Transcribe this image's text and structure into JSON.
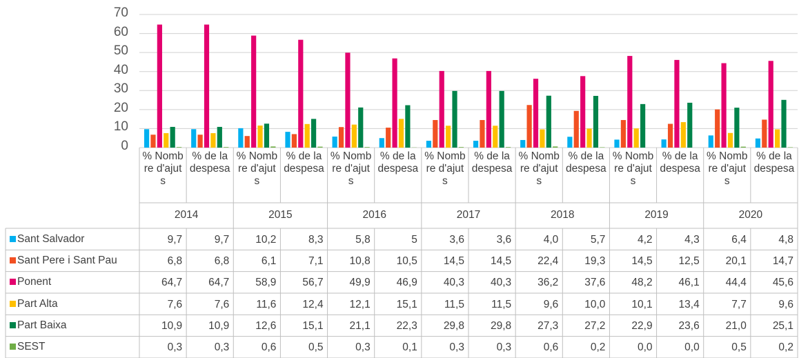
{
  "chart_data": {
    "type": "bar",
    "categories": [
      "% Nombre d'ajuts",
      "% de la despesa",
      "% Nombre d'ajuts",
      "% de la despesa",
      "% Nombre d'ajuts",
      "% de la despesa",
      "% Nombre d'ajuts",
      "% de la despesa",
      "% Nombre d'ajuts",
      "% de la despesa",
      "% Nombre d'ajuts",
      "% de la despesa",
      "% Nombre d'ajuts",
      "% de la despesa"
    ],
    "groups": [
      "2014",
      "2015",
      "2016",
      "2017",
      "2018",
      "2019",
      "2020"
    ],
    "series": [
      {
        "name": "Sant Salvador",
        "color": "#00b0f0",
        "values": [
          9.7,
          9.7,
          10.2,
          8.3,
          5.8,
          5,
          3.6,
          3.6,
          4.0,
          5.7,
          4.2,
          4.3,
          6.4,
          4.8
        ],
        "value_labels": [
          "9,7",
          "9,7",
          "10,2",
          "8,3",
          "5,8",
          "5",
          "3,6",
          "3,6",
          "4,0",
          "5,7",
          "4,2",
          "4,3",
          "6,4",
          "4,8"
        ]
      },
      {
        "name": "Sant Pere i Sant Pau",
        "color": "#f25022",
        "values": [
          6.8,
          6.8,
          6.1,
          7.1,
          10.8,
          10.5,
          14.5,
          14.5,
          22.4,
          19.3,
          14.5,
          12.5,
          20.1,
          14.7
        ],
        "value_labels": [
          "6,8",
          "6,8",
          "6,1",
          "7,1",
          "10,8",
          "10,5",
          "14,5",
          "14,5",
          "22,4",
          "19,3",
          "14,5",
          "12,5",
          "20,1",
          "14,7"
        ]
      },
      {
        "name": "Ponent",
        "color": "#e3006e",
        "values": [
          64.7,
          64.7,
          58.9,
          56.7,
          49.9,
          46.9,
          40.3,
          40.3,
          36.2,
          37.6,
          48.2,
          46.1,
          44.4,
          45.6
        ],
        "value_labels": [
          "64,7",
          "64,7",
          "58,9",
          "56,7",
          "49,9",
          "46,9",
          "40,3",
          "40,3",
          "36,2",
          "37,6",
          "48,2",
          "46,1",
          "44,4",
          "45,6"
        ]
      },
      {
        "name": "Part Alta",
        "color": "#ffc000",
        "values": [
          7.6,
          7.6,
          11.6,
          12.4,
          12.1,
          15.1,
          11.5,
          11.5,
          9.6,
          10.0,
          10.1,
          13.4,
          7.7,
          9.6
        ],
        "value_labels": [
          "7,6",
          "7,6",
          "11,6",
          "12,4",
          "12,1",
          "15,1",
          "11,5",
          "11,5",
          "9,6",
          "10,0",
          "10,1",
          "13,4",
          "7,7",
          "9,6"
        ]
      },
      {
        "name": "Part Baixa",
        "color": "#00834a",
        "values": [
          10.9,
          10.9,
          12.6,
          15.1,
          21.1,
          22.3,
          29.8,
          29.8,
          27.3,
          27.2,
          22.9,
          23.6,
          21.0,
          25.1
        ],
        "value_labels": [
          "10,9",
          "10,9",
          "12,6",
          "15,1",
          "21,1",
          "22,3",
          "29,8",
          "29,8",
          "27,3",
          "27,2",
          "22,9",
          "23,6",
          "21,0",
          "25,1"
        ]
      },
      {
        "name": "SEST",
        "color": "#70ad47",
        "values": [
          0.3,
          0.3,
          0.6,
          0.5,
          0.3,
          0.1,
          0.3,
          0.3,
          0.6,
          0.2,
          0.0,
          0.0,
          0.5,
          0.2
        ],
        "value_labels": [
          "0,3",
          "0,3",
          "0,6",
          "0,5",
          "0,3",
          "0,1",
          "0,3",
          "0,3",
          "0,6",
          "0,2",
          "0,0",
          "0,0",
          "0,5",
          "0,2"
        ]
      }
    ],
    "ylim": [
      0,
      70
    ],
    "yticks": [
      0,
      10,
      20,
      30,
      40,
      50,
      60,
      70
    ],
    "grid": true
  }
}
